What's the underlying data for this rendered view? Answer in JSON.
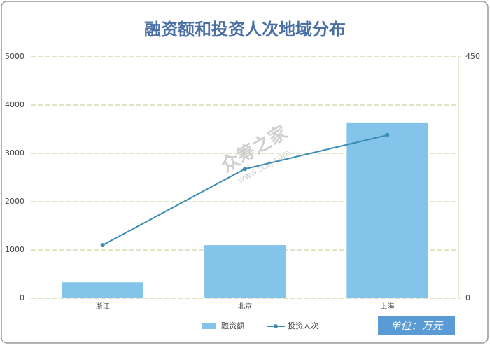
{
  "chart_data": {
    "type": "bar",
    "title": "融资额和投资人次地域分布",
    "categories": [
      "浙江",
      "北京",
      "上海"
    ],
    "series": [
      {
        "name": "融资额",
        "type": "bar",
        "color": "#85c4ea",
        "values": [
          330,
          1100,
          3640
        ]
      },
      {
        "name": "投资人次",
        "type": "line",
        "color": "#3a8bb5",
        "axis": "y2",
        "values": [
          99,
          241,
          304
        ]
      }
    ],
    "ylim": [
      0,
      5000
    ],
    "yticks": [
      0,
      1000,
      2000,
      3000,
      4000,
      5000
    ],
    "y2lim": [
      0,
      450
    ],
    "y2ticks": [
      0,
      450
    ],
    "grid": true,
    "legend": "bottom",
    "annotation": "单位：万元",
    "watermark": [
      "众筹之家",
      "www.zczj.com"
    ]
  }
}
